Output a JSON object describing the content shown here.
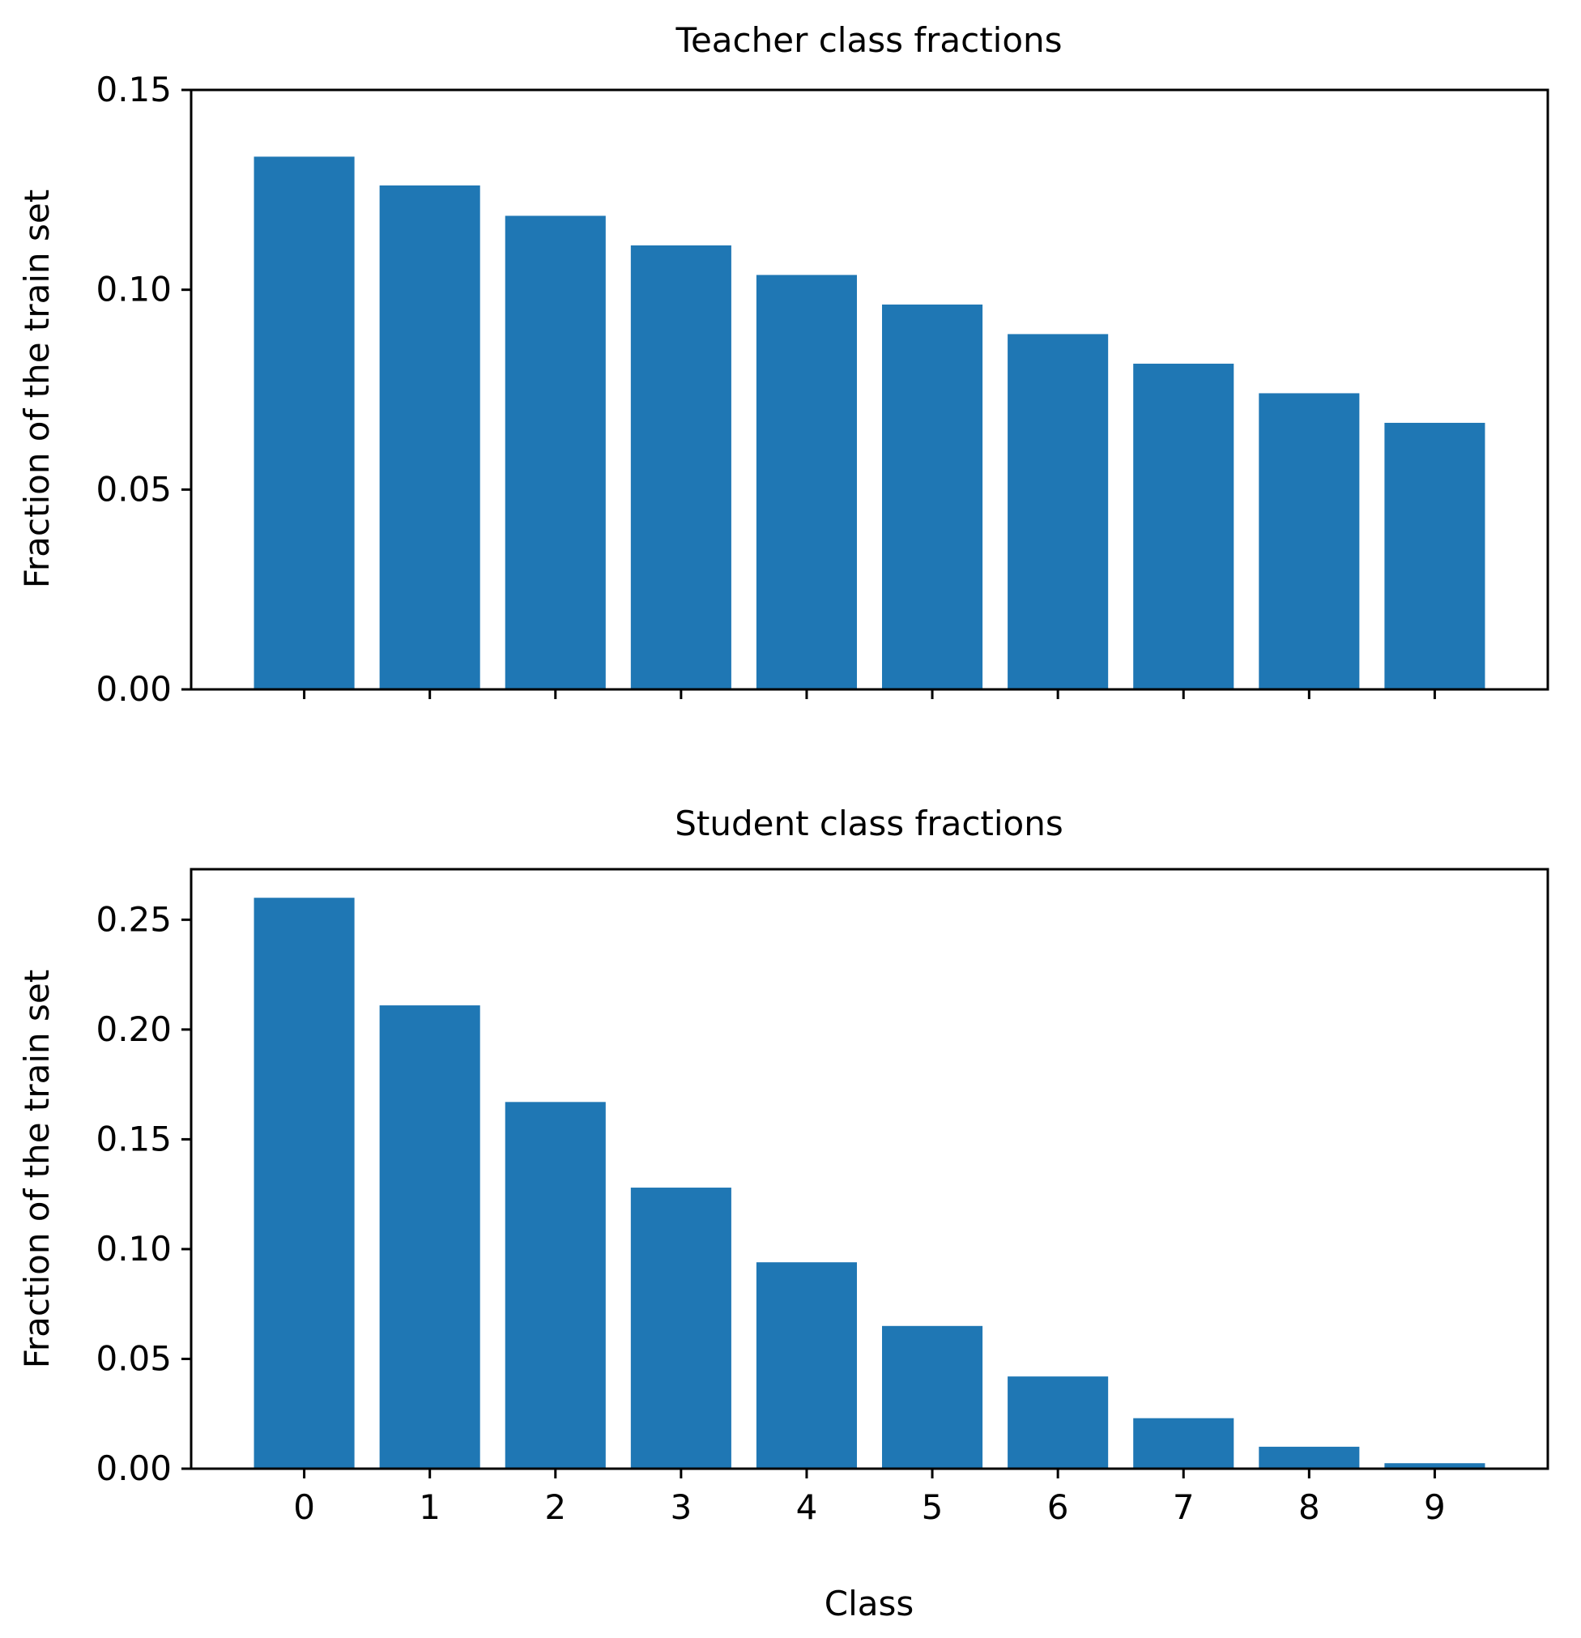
{
  "chart_data": [
    {
      "type": "bar",
      "title": "Teacher class fractions",
      "xlabel": "",
      "ylabel": "Fraction of the train set",
      "categories": [
        "0",
        "1",
        "2",
        "3",
        "4",
        "5",
        "6",
        "7",
        "8",
        "9"
      ],
      "values": [
        0.1333,
        0.1261,
        0.1185,
        0.1111,
        0.1037,
        0.0963,
        0.0889,
        0.0815,
        0.0741,
        0.0667
      ],
      "ylim": [
        0,
        0.15
      ],
      "yticks": [
        0.0,
        0.05,
        0.1,
        0.15
      ],
      "ytick_labels": [
        "0.00",
        "0.05",
        "0.10",
        "0.15"
      ],
      "show_x_ticklabels": false,
      "grid": false,
      "bar_color": "#1f77b4"
    },
    {
      "type": "bar",
      "title": "Student class fractions",
      "xlabel": "Class",
      "ylabel": "Fraction of the train set",
      "categories": [
        "0",
        "1",
        "2",
        "3",
        "4",
        "5",
        "6",
        "7",
        "8",
        "9"
      ],
      "values": [
        0.26,
        0.211,
        0.167,
        0.128,
        0.094,
        0.065,
        0.042,
        0.023,
        0.01,
        0.0025
      ],
      "ylim": [
        0,
        0.273
      ],
      "yticks": [
        0.0,
        0.05,
        0.1,
        0.15,
        0.2,
        0.25
      ],
      "ytick_labels": [
        "0.00",
        "0.05",
        "0.10",
        "0.15",
        "0.20",
        "0.25"
      ],
      "show_x_ticklabels": true,
      "grid": false,
      "bar_color": "#1f77b4"
    }
  ]
}
